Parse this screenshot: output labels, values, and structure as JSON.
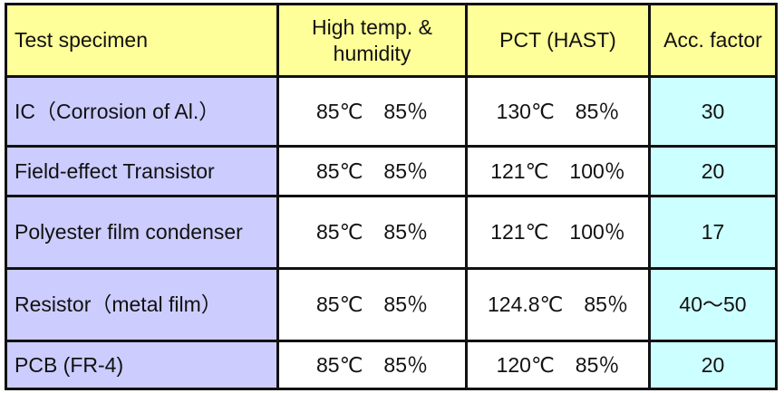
{
  "table": {
    "headers": [
      "Test specimen",
      "High temp. & humidity",
      "PCT (HAST)",
      "Acc. factor"
    ],
    "rows": [
      {
        "specimen": "IC（Corrosion of Al.）",
        "high_temp_humidity": "85℃　85％",
        "pct_hast": "130℃　85％",
        "acc_factor": "30"
      },
      {
        "specimen": "Field-effect Transistor",
        "high_temp_humidity": "85℃　85％",
        "pct_hast": "121℃　100％",
        "acc_factor": "20"
      },
      {
        "specimen": "Polyester film condenser",
        "high_temp_humidity": "85℃　85％",
        "pct_hast": "121℃　100％",
        "acc_factor": "17"
      },
      {
        "specimen": "Resistor（metal film）",
        "high_temp_humidity": "85℃　85％",
        "pct_hast": "124.8℃　85％",
        "acc_factor": "40～50"
      },
      {
        "specimen": "PCB (FR-4)",
        "high_temp_humidity": "85℃　85％",
        "pct_hast": "120℃　85％",
        "acc_factor": "20"
      }
    ]
  },
  "colors": {
    "header": "#ffff99",
    "specimen_column": "#ccccff",
    "acc_factor_column": "#ccffff"
  }
}
